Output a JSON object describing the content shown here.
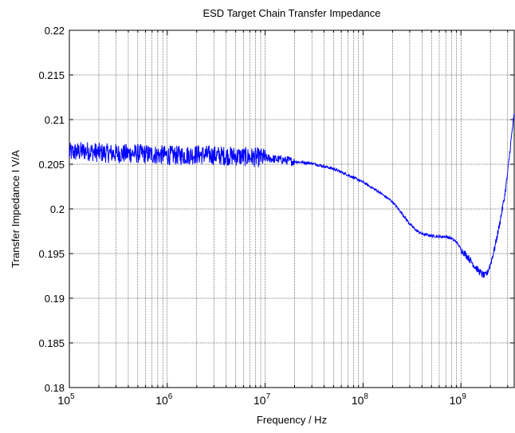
{
  "chart_data": {
    "type": "line",
    "title": "ESD Target Chain Transfer Impedance",
    "xlabel": "Frequency / Hz",
    "ylabel": "Transfer Impedance I V/A",
    "x_scale": "log",
    "xlim": [
      100000,
      3500000000
    ],
    "ylim": [
      0.18,
      0.22
    ],
    "grid": true,
    "legend": "none",
    "x_ticks": [
      {
        "value": 100000,
        "base": "10",
        "exp": "5"
      },
      {
        "value": 1000000,
        "base": "10",
        "exp": "6"
      },
      {
        "value": 10000000,
        "base": "10",
        "exp": "7"
      },
      {
        "value": 100000000,
        "base": "10",
        "exp": "8"
      },
      {
        "value": 1000000000,
        "base": "10",
        "exp": "9"
      }
    ],
    "y_ticks": [
      {
        "value": 0.18,
        "label": "0.18"
      },
      {
        "value": 0.185,
        "label": "0.185"
      },
      {
        "value": 0.19,
        "label": "0.19"
      },
      {
        "value": 0.195,
        "label": "0.195"
      },
      {
        "value": 0.2,
        "label": "0.2"
      },
      {
        "value": 0.205,
        "label": "0.205"
      },
      {
        "value": 0.21,
        "label": "0.21"
      },
      {
        "value": 0.215,
        "label": "0.215"
      },
      {
        "value": 0.22,
        "label": "0.22"
      }
    ],
    "series": [
      {
        "color": "#0000ff",
        "points": [
          [
            100000,
            0.2063
          ],
          [
            150000,
            0.2065
          ],
          [
            200000,
            0.2063
          ],
          [
            300000,
            0.2062
          ],
          [
            500000,
            0.2062
          ],
          [
            700000,
            0.2061
          ],
          [
            1000000,
            0.206
          ],
          [
            1500000,
            0.206
          ],
          [
            2000000,
            0.2061
          ],
          [
            3000000,
            0.206
          ],
          [
            5000000,
            0.2059
          ],
          [
            7000000,
            0.2058
          ],
          [
            10000000,
            0.2057
          ],
          [
            15000000,
            0.2055
          ],
          [
            20000000,
            0.2053
          ],
          [
            30000000,
            0.2051
          ],
          [
            50000000,
            0.2045
          ],
          [
            70000000,
            0.2038
          ],
          [
            100000000,
            0.203
          ],
          [
            150000000,
            0.2018
          ],
          [
            200000000,
            0.2008
          ],
          [
            250000000,
            0.1995
          ],
          [
            300000000,
            0.1983
          ],
          [
            350000000,
            0.1976
          ],
          [
            400000000,
            0.1972
          ],
          [
            500000000,
            0.197
          ],
          [
            600000000,
            0.1969
          ],
          [
            700000000,
            0.1969
          ],
          [
            800000000,
            0.1967
          ],
          [
            900000000,
            0.1963
          ],
          [
            1000000000,
            0.1955
          ],
          [
            1200000000,
            0.1945
          ],
          [
            1400000000,
            0.1935
          ],
          [
            1600000000,
            0.1928
          ],
          [
            1750000000,
            0.1925
          ],
          [
            1850000000,
            0.1928
          ],
          [
            2000000000,
            0.1938
          ],
          [
            2200000000,
            0.1955
          ],
          [
            2400000000,
            0.1975
          ],
          [
            2600000000,
            0.1995
          ],
          [
            2800000000,
            0.2015
          ],
          [
            3000000000,
            0.204
          ],
          [
            3200000000,
            0.207
          ],
          [
            3400000000,
            0.2095
          ],
          [
            3500000000,
            0.2105
          ]
        ]
      }
    ]
  }
}
